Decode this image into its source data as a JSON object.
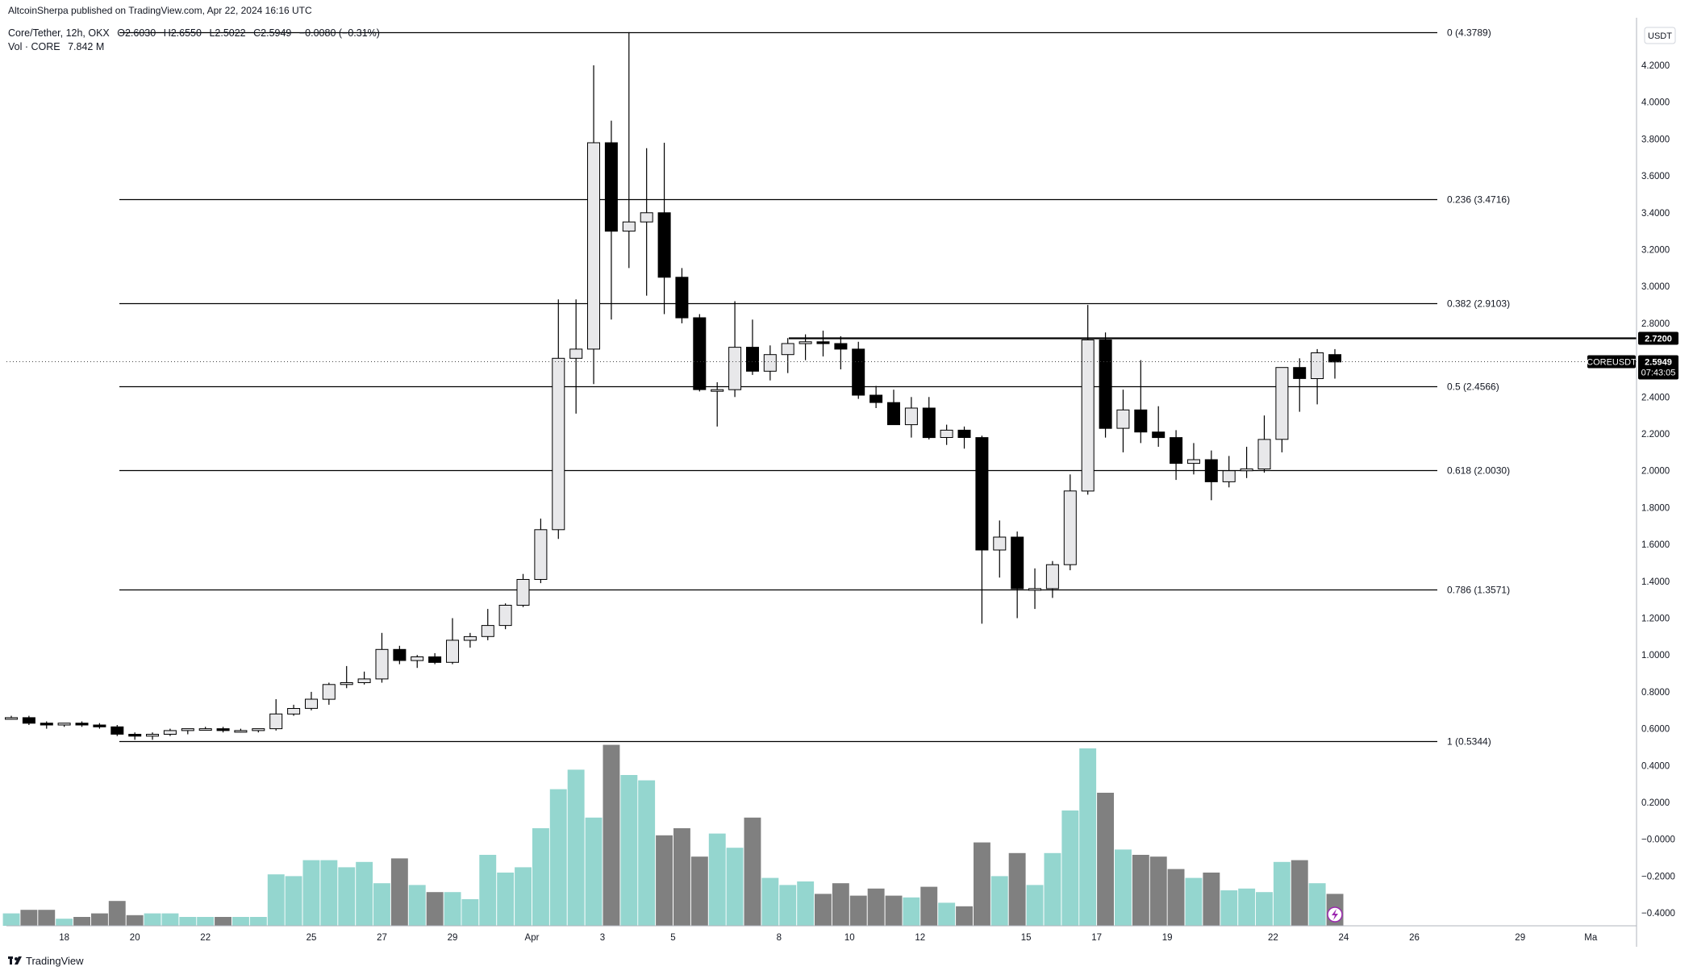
{
  "header": {
    "published": "AltcoinSherpa published on TradingView.com, Apr 22, 2024 16:16 UTC",
    "symbol_line": "Core/Tether, 12h, OKX",
    "ohlc": {
      "o": "O2.6030",
      "h": "H2.6550",
      "l": "L2.5022",
      "c": "C2.5949",
      "chg": "−0.0080 (−0.31%)"
    },
    "vol_line": "Vol · CORE",
    "vol_value": "7.842 M"
  },
  "price_axis": {
    "unit": "USDT",
    "ticks": [
      "4.2000",
      "4.0000",
      "3.8000",
      "3.6000",
      "3.4000",
      "3.2000",
      "3.0000",
      "2.8000",
      "2.4000",
      "2.2000",
      "2.0000",
      "1.8000",
      "1.6000",
      "1.4000",
      "1.2000",
      "1.0000",
      "0.8000",
      "0.6000",
      "0.4000",
      "0.2000",
      "−0.0000",
      "−0.2000",
      "−0.4000"
    ]
  },
  "time_axis": {
    "labels": [
      "18",
      "20",
      "22",
      "25",
      "27",
      "29",
      "Apr",
      "3",
      "5",
      "8",
      "10",
      "12",
      "15",
      "17",
      "19",
      "22",
      "24",
      "26",
      "29",
      "Ma"
    ]
  },
  "markers": {
    "resistance": "2.7200",
    "symbol": "COREUSDT",
    "last_price": "2.5949",
    "countdown": "07:43:05"
  },
  "footer": {
    "brand": "TradingView"
  },
  "colors": {
    "up": "#e8e8ea",
    "down": "#000000",
    "vol_up": "#94d6cf",
    "vol_down": "#808080",
    "fib": "#000000",
    "accent": "#9c27b0"
  },
  "chart_data": {
    "type": "candlestick",
    "timeframe": "12h",
    "ylim": [
      -0.4,
      4.45
    ],
    "fib_levels": [
      {
        "label": "0 (4.3789)",
        "price": 4.3789
      },
      {
        "label": "0.236 (3.4716)",
        "price": 3.4716
      },
      {
        "label": "0.382 (2.9103)",
        "price": 2.9103
      },
      {
        "label": "0.5 (2.4566)",
        "price": 2.4566
      },
      {
        "label": "0.618 (2.0030)",
        "price": 2.003
      },
      {
        "label": "0.786 (1.3571)",
        "price": 1.3571
      },
      {
        "label": "1 (0.5344)",
        "price": 0.5344
      }
    ],
    "resistance_level": 2.72,
    "last_price": 2.5949,
    "candles": [
      [
        0.66,
        0.67,
        0.65,
        0.66
      ],
      [
        0.66,
        0.67,
        0.62,
        0.63
      ],
      [
        0.63,
        0.64,
        0.6,
        0.62
      ],
      [
        0.62,
        0.63,
        0.61,
        0.63
      ],
      [
        0.63,
        0.64,
        0.61,
        0.62
      ],
      [
        0.62,
        0.63,
        0.6,
        0.61
      ],
      [
        0.61,
        0.62,
        0.56,
        0.57
      ],
      [
        0.57,
        0.58,
        0.54,
        0.56
      ],
      [
        0.56,
        0.58,
        0.54,
        0.57
      ],
      [
        0.57,
        0.6,
        0.56,
        0.59
      ],
      [
        0.59,
        0.6,
        0.57,
        0.6
      ],
      [
        0.6,
        0.61,
        0.59,
        0.6
      ],
      [
        0.6,
        0.61,
        0.58,
        0.59
      ],
      [
        0.59,
        0.6,
        0.58,
        0.59
      ],
      [
        0.59,
        0.6,
        0.58,
        0.6
      ],
      [
        0.6,
        0.76,
        0.59,
        0.68
      ],
      [
        0.68,
        0.73,
        0.67,
        0.71
      ],
      [
        0.71,
        0.8,
        0.7,
        0.76
      ],
      [
        0.76,
        0.85,
        0.73,
        0.84
      ],
      [
        0.84,
        0.94,
        0.82,
        0.85
      ],
      [
        0.85,
        0.91,
        0.84,
        0.87
      ],
      [
        0.87,
        1.12,
        0.85,
        1.03
      ],
      [
        1.03,
        1.05,
        0.95,
        0.97
      ],
      [
        0.97,
        1.0,
        0.93,
        0.99
      ],
      [
        0.99,
        1.01,
        0.95,
        0.96
      ],
      [
        0.96,
        1.2,
        0.95,
        1.08
      ],
      [
        1.08,
        1.12,
        1.04,
        1.1
      ],
      [
        1.1,
        1.25,
        1.08,
        1.16
      ],
      [
        1.16,
        1.28,
        1.14,
        1.27
      ],
      [
        1.27,
        1.44,
        1.26,
        1.41
      ],
      [
        1.41,
        1.74,
        1.39,
        1.68
      ],
      [
        1.68,
        2.93,
        1.63,
        2.61
      ],
      [
        2.61,
        2.93,
        2.31,
        2.66
      ],
      [
        2.66,
        4.2,
        2.47,
        3.78
      ],
      [
        3.78,
        3.9,
        2.82,
        3.3
      ],
      [
        3.3,
        4.38,
        3.1,
        3.35
      ],
      [
        3.35,
        3.75,
        2.95,
        3.4
      ],
      [
        3.4,
        3.78,
        2.85,
        3.05
      ],
      [
        3.05,
        3.1,
        2.8,
        2.83
      ],
      [
        2.83,
        2.85,
        2.43,
        2.44
      ],
      [
        2.44,
        2.48,
        2.24,
        2.44
      ],
      [
        2.44,
        2.92,
        2.4,
        2.67
      ],
      [
        2.67,
        2.82,
        2.52,
        2.54
      ],
      [
        2.54,
        2.68,
        2.49,
        2.63
      ],
      [
        2.63,
        2.72,
        2.53,
        2.69
      ],
      [
        2.69,
        2.74,
        2.6,
        2.7
      ],
      [
        2.7,
        2.76,
        2.62,
        2.69
      ],
      [
        2.69,
        2.73,
        2.55,
        2.66
      ],
      [
        2.66,
        2.7,
        2.39,
        2.41
      ],
      [
        2.41,
        2.46,
        2.34,
        2.37
      ],
      [
        2.37,
        2.44,
        2.27,
        2.25
      ],
      [
        2.25,
        2.4,
        2.18,
        2.34
      ],
      [
        2.34,
        2.4,
        2.17,
        2.18
      ],
      [
        2.18,
        2.25,
        2.14,
        2.22
      ],
      [
        2.22,
        2.24,
        2.12,
        2.18
      ],
      [
        2.18,
        2.19,
        1.17,
        1.57
      ],
      [
        1.57,
        1.73,
        1.42,
        1.64
      ],
      [
        1.64,
        1.67,
        1.2,
        1.36
      ],
      [
        1.36,
        1.47,
        1.25,
        1.36
      ],
      [
        1.36,
        1.51,
        1.31,
        1.49
      ],
      [
        1.49,
        1.98,
        1.46,
        1.89
      ],
      [
        1.89,
        2.9,
        1.87,
        2.71
      ],
      [
        2.71,
        2.75,
        2.18,
        2.23
      ],
      [
        2.23,
        2.44,
        2.1,
        2.33
      ],
      [
        2.33,
        2.6,
        2.15,
        2.21
      ],
      [
        2.21,
        2.35,
        2.13,
        2.18
      ],
      [
        2.18,
        2.22,
        1.95,
        2.04
      ],
      [
        2.04,
        2.15,
        1.98,
        2.06
      ],
      [
        2.06,
        2.11,
        1.84,
        1.94
      ],
      [
        1.94,
        2.08,
        1.91,
        2.0
      ],
      [
        2.0,
        2.13,
        1.96,
        2.01
      ],
      [
        2.01,
        2.3,
        1.99,
        2.17
      ],
      [
        2.17,
        2.55,
        2.1,
        2.56
      ],
      [
        2.56,
        2.61,
        2.32,
        2.5
      ],
      [
        2.5,
        2.66,
        2.36,
        2.64
      ],
      [
        2.63,
        2.66,
        2.5,
        2.59
      ]
    ],
    "volume_ratio": [
      0.07,
      0.09,
      0.09,
      0.04,
      0.05,
      0.07,
      0.14,
      0.06,
      0.07,
      0.07,
      0.05,
      0.05,
      0.05,
      0.05,
      0.05,
      0.29,
      0.28,
      0.37,
      0.37,
      0.33,
      0.36,
      0.24,
      0.38,
      0.23,
      0.19,
      0.19,
      0.15,
      0.4,
      0.3,
      0.33,
      0.55,
      0.77,
      0.88,
      0.61,
      1.02,
      0.85,
      0.82,
      0.51,
      0.55,
      0.39,
      0.52,
      0.44,
      0.61,
      0.27,
      0.23,
      0.25,
      0.18,
      0.24,
      0.17,
      0.21,
      0.17,
      0.16,
      0.22,
      0.13,
      0.11,
      0.47,
      0.28,
      0.41,
      0.23,
      0.41,
      0.65,
      1.0,
      0.75,
      0.43,
      0.4,
      0.39,
      0.32,
      0.27,
      0.3,
      0.2,
      0.21,
      0.19,
      0.36,
      0.37,
      0.24,
      0.18
    ]
  }
}
